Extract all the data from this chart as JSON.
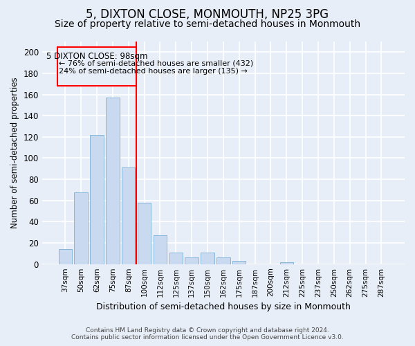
{
  "title": "5, DIXTON CLOSE, MONMOUTH, NP25 3PG",
  "subtitle": "Size of property relative to semi-detached houses in Monmouth",
  "xlabel": "Distribution of semi-detached houses by size in Monmouth",
  "ylabel": "Number of semi-detached properties",
  "categories": [
    "37sqm",
    "50sqm",
    "62sqm",
    "75sqm",
    "87sqm",
    "100sqm",
    "112sqm",
    "125sqm",
    "137sqm",
    "150sqm",
    "162sqm",
    "175sqm",
    "187sqm",
    "200sqm",
    "212sqm",
    "225sqm",
    "237sqm",
    "250sqm",
    "262sqm",
    "275sqm",
    "287sqm"
  ],
  "values": [
    14,
    68,
    122,
    157,
    91,
    58,
    27,
    11,
    6,
    11,
    6,
    3,
    0,
    0,
    2,
    0,
    0,
    0,
    0,
    0,
    0
  ],
  "bar_color": "#c8d9f0",
  "bar_edge_color": "#7aafd4",
  "property_label": "5 DIXTON CLOSE: 98sqm",
  "annotation_line1": "← 76% of semi-detached houses are smaller (432)",
  "annotation_line2": "24% of semi-detached houses are larger (135) →",
  "vline_pos": 4.5,
  "ylim": [
    0,
    210
  ],
  "yticks": [
    0,
    20,
    40,
    60,
    80,
    100,
    120,
    140,
    160,
    180,
    200
  ],
  "footer1": "Contains HM Land Registry data © Crown copyright and database right 2024.",
  "footer2": "Contains public sector information licensed under the Open Government Licence v3.0.",
  "bg_color": "#e8eef7",
  "plot_bg_color": "#e8eef7",
  "grid_color": "#ffffff",
  "title_fontsize": 12,
  "subtitle_fontsize": 10,
  "bar_width": 0.85
}
